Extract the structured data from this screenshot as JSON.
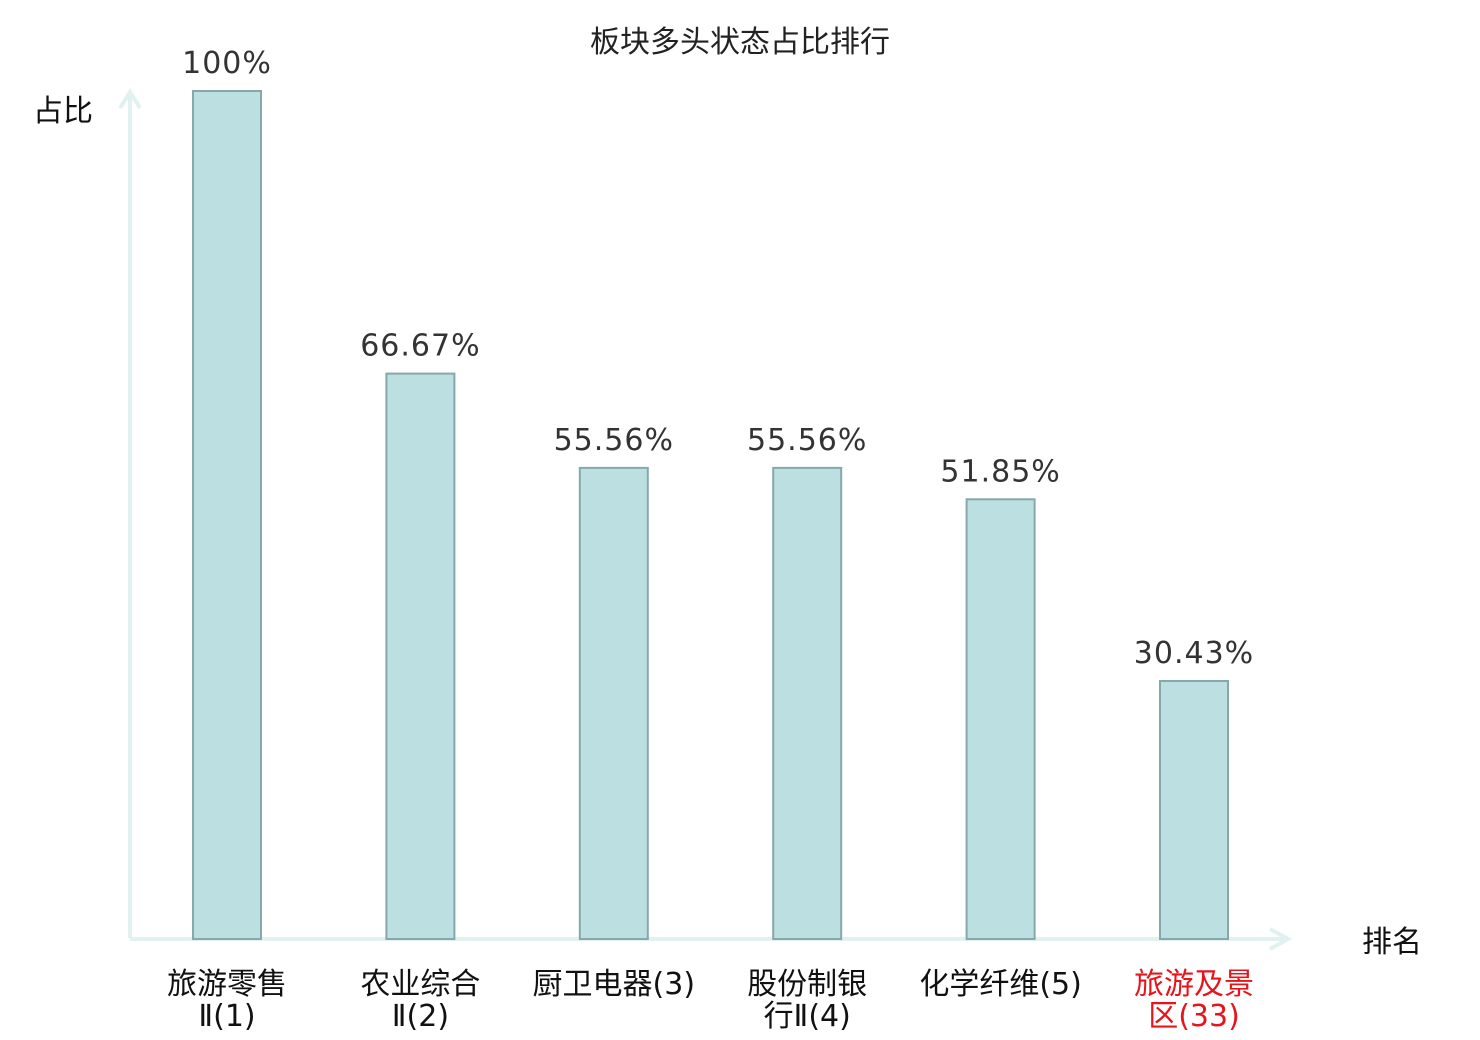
{
  "chart_data": {
    "type": "bar",
    "title": "板块多头状态占比排行",
    "ylabel": "占比",
    "xlabel": "排名",
    "ylim": [
      0,
      100
    ],
    "grid": false,
    "legend": "none",
    "categories": [
      {
        "name": "旅游零售Ⅱ",
        "rank": "(1)",
        "lines": [
          "旅游零售",
          "Ⅱ(1)"
        ],
        "highlight": false
      },
      {
        "name": "农业综合Ⅱ",
        "rank": "(2)",
        "lines": [
          "农业综合",
          "Ⅱ(2)"
        ],
        "highlight": false
      },
      {
        "name": "厨卫电器",
        "rank": "(3)",
        "lines": [
          "厨卫电器(3)"
        ],
        "highlight": false
      },
      {
        "name": "股份制银行Ⅱ",
        "rank": "(4)",
        "lines": [
          "股份制银",
          "行Ⅱ(4)"
        ],
        "highlight": false
      },
      {
        "name": "化学纤维",
        "rank": "(5)",
        "lines": [
          "化学纤维(5)"
        ],
        "highlight": false
      },
      {
        "name": "旅游及景区",
        "rank": "(33)",
        "lines": [
          "旅游及景",
          "区(33)"
        ],
        "highlight": true
      }
    ],
    "values": [
      100,
      66.67,
      55.56,
      55.56,
      51.85,
      30.43
    ],
    "value_labels": [
      "100%",
      "66.67%",
      "55.56%",
      "55.56%",
      "51.85%",
      "30.43%"
    ],
    "colors": {
      "bar_fill": "#bce0e2",
      "bar_stroke": "#86a8aa",
      "axis": "#e0f1ef",
      "highlight_text": "#e8141b"
    }
  }
}
